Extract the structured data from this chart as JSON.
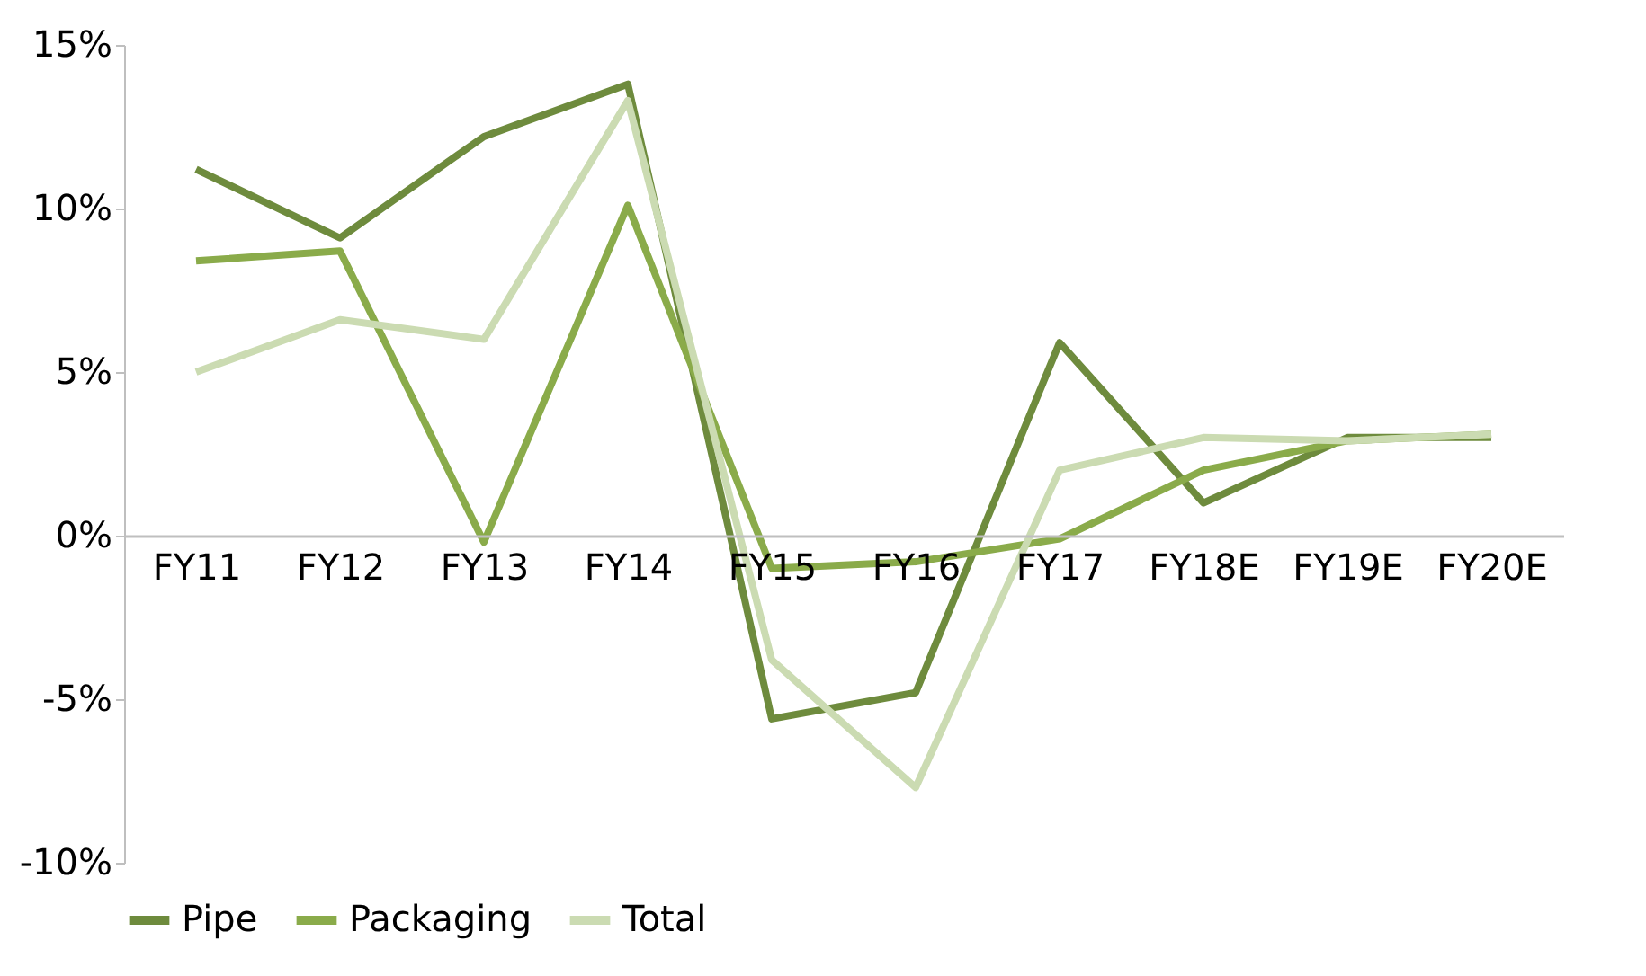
{
  "chart_data": {
    "type": "line",
    "categories": [
      "FY11",
      "FY12",
      "FY13",
      "FY14",
      "FY15",
      "FY16",
      "FY17",
      "FY18E",
      "FY19E",
      "FY20E"
    ],
    "series": [
      {
        "name": "Pipe",
        "color": "#6e8b3d",
        "values": [
          11.2,
          9.1,
          12.2,
          13.8,
          -5.6,
          -4.8,
          5.9,
          1.0,
          3.0,
          3.0
        ]
      },
      {
        "name": "Packaging",
        "color": "#8aab4a",
        "values": [
          8.4,
          8.7,
          -0.2,
          10.1,
          -1.0,
          -0.8,
          -0.1,
          2.0,
          2.9,
          3.1
        ]
      },
      {
        "name": "Total",
        "color": "#cbdbb2",
        "values": [
          5.0,
          6.6,
          6.0,
          13.3,
          -3.8,
          -7.7,
          2.0,
          3.0,
          2.9,
          3.1
        ]
      }
    ],
    "ylim": [
      -10,
      15
    ],
    "yticks": [
      {
        "value": -10,
        "label": "-10%"
      },
      {
        "value": -5,
        "label": "-5%"
      },
      {
        "value": 0,
        "label": "0%"
      },
      {
        "value": 5,
        "label": "5%"
      },
      {
        "value": 10,
        "label": "10%"
      },
      {
        "value": 15,
        "label": "15%"
      }
    ],
    "grid": false,
    "legend": "bottom",
    "marker": "none",
    "line_style": "solid"
  }
}
